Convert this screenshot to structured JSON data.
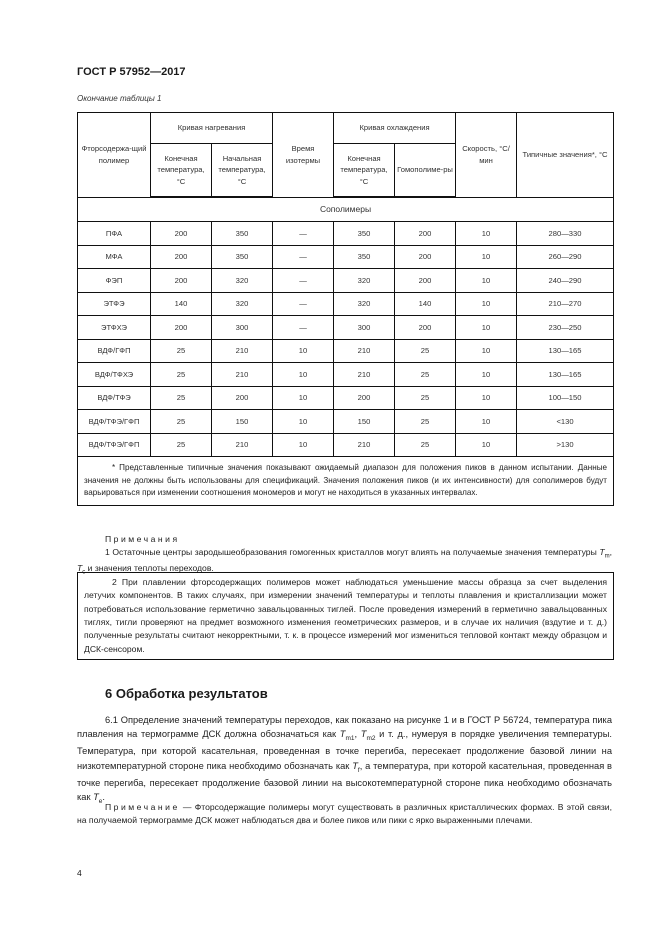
{
  "header": {
    "doc_title": "ГОСТ Р 57952—2017",
    "table_caption": "Окончание таблицы 1"
  },
  "table": {
    "headers": {
      "polymer": "Фторсодержа-щий полимер",
      "heating_curve": "Кривая нагревания",
      "heating_end": "Конечная температура, °С",
      "heating_start": "Начальная температура, °С",
      "isotherm_time": "Время изотермы",
      "cooling_curve": "Кривая охлаждения",
      "cooling_end": "Конечная температура, °С",
      "homopolymers": "Гомополиме-ры",
      "rate": "Скорость, °С/мин",
      "typical": "Типичные значения*, °С"
    },
    "group_label": "Сополимеры",
    "rows": [
      [
        "ПФА",
        "200",
        "350",
        "—",
        "350",
        "200",
        "10",
        "280—330"
      ],
      [
        "МФА",
        "200",
        "350",
        "—",
        "350",
        "200",
        "10",
        "260—290"
      ],
      [
        "ФЭП",
        "200",
        "320",
        "—",
        "320",
        "200",
        "10",
        "240—290"
      ],
      [
        "ЭТФЭ",
        "140",
        "320",
        "—",
        "320",
        "140",
        "10",
        "210—270"
      ],
      [
        "ЭТФХЭ",
        "200",
        "300",
        "—",
        "300",
        "200",
        "10",
        "230—250"
      ],
      [
        "ВДФ/ГФП",
        "25",
        "210",
        "10",
        "210",
        "25",
        "10",
        "130—165"
      ],
      [
        "ВДФ/ТФХЭ",
        "25",
        "210",
        "10",
        "210",
        "25",
        "10",
        "130—165"
      ],
      [
        "ВДФ/ТФЭ",
        "25",
        "200",
        "10",
        "200",
        "25",
        "10",
        "100—150"
      ],
      [
        "ВДФ/ТФЭ/ГФП",
        "25",
        "150",
        "10",
        "150",
        "25",
        "10",
        "<130"
      ],
      [
        "ВДФ/ТФЭ/ГФП",
        "25",
        "210",
        "10",
        "210",
        "25",
        "10",
        ">130"
      ]
    ],
    "footnote": "* Представленные типичные значения показывают ожидаемый диапазон для положения пиков в данном испытании. Данные значения не должны быть использованы для спецификаций. Значения положения пиков (и их интенсивности) для сополимеров будут варьироваться при изменении соотношения мономеров и могут не находиться в указанных интервалах."
  },
  "notes": {
    "title": "Примечания",
    "note1_a": "1 Остаточные центры зародышеобразования гомогенных кристаллов могут влиять на получаемые значения температуры ",
    "note1_tm": "T",
    "note1_tm_sub": "m",
    "note1_tc": "T",
    "note1_tc_sub": "c",
    "note1_b": " и значения теплоты переходов.",
    "note2": "2 При плавлении фторсодержащих полимеров может наблюдаться уменьшение массы образца за счет выделения летучих компонентов. В таких случаях, при измерении значений температуры и теплоты плавления и кристаллизации может потребоваться использование герметично завальцованных тиглей. После проведения измерений в герметично завальцованных тиглях, тигли проверяют на предмет возможного изменения геометрических размеров, и в случае их наличия (вздутие и т. д.) полученные результаты считают некорректными, т. к. в процессе измерений мог измениться тепловой контакт между образцом и ДСК-сенсором."
  },
  "section": {
    "heading": "6 Обработка результатов",
    "p1_a": "6.1 Определение значений температуры переходов, как показано на рисунке 1 и в ГОСТ Р 56724, температура пика плавления на термограмме ДСК должна обозначаться как ",
    "tm1_sub": "m1",
    "tm2_sub": "m2",
    "p1_b": " и т. д., нумеруя в порядке увеличения температуры. Температура, при которой касательная, проведенная в точке перегиба, пересекает продолжение базовой линии на низкотемпературной стороне пика необходимо обозначать как ",
    "tf_sub": "f",
    "p1_c": ", а температура, при которой касательная, проведенная в точке перегиба, пересекает продолжение базовой линии на высокотемпературной стороне пика необходимо обозначать как ",
    "te_sub": "e",
    "T": "T",
    "note_label": "Примечание",
    "note_text": " — Фторсодержащие полимеры могут существовать в различных кристаллических формах. В этой связи, на получаемой термограмме ДСК может наблюдаться два и более пиков или пики с ярко выраженными плечами."
  },
  "footer": {
    "page_number": "4"
  }
}
